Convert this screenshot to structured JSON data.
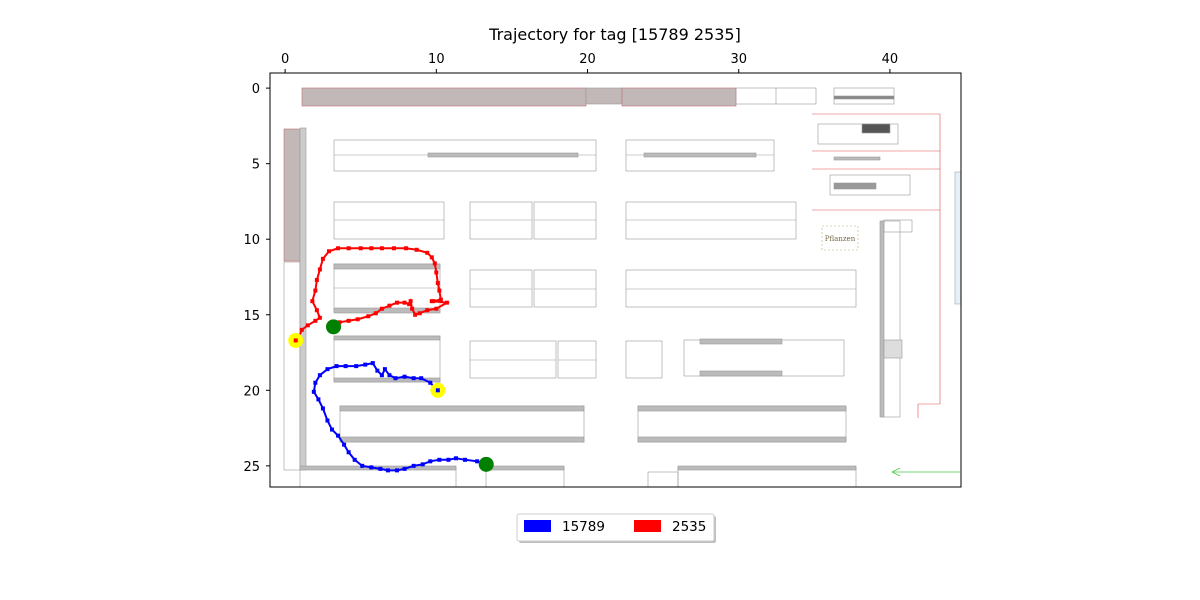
{
  "chart_data": {
    "type": "scatter",
    "title": "Trajectory for tag [15789  2535]",
    "xlabel": "",
    "ylabel": "",
    "xlim": [
      -1,
      44.7
    ],
    "ylim": [
      26.4,
      -1
    ],
    "x_ticks": [
      0,
      10,
      20,
      30,
      40
    ],
    "y_ticks": [
      0,
      5,
      10,
      15,
      20,
      25
    ],
    "x_axis_position": "top",
    "y_inverted": true,
    "grid": false,
    "legend_position": "bottom-center",
    "background": "floor plan image",
    "floor_plan_labels": {
      "plants": "Pflanzen"
    },
    "series": [
      {
        "name": "15789",
        "color": "#0000ff",
        "points": [
          [
            13.3,
            24.9
          ],
          [
            12.7,
            24.7
          ],
          [
            11.9,
            24.6
          ],
          [
            11.3,
            24.5
          ],
          [
            10.8,
            24.6
          ],
          [
            10.2,
            24.6
          ],
          [
            9.6,
            24.7
          ],
          [
            9.1,
            24.9
          ],
          [
            8.5,
            25.0
          ],
          [
            7.9,
            25.2
          ],
          [
            7.4,
            25.3
          ],
          [
            6.8,
            25.3
          ],
          [
            6.3,
            25.2
          ],
          [
            5.7,
            25.1
          ],
          [
            5.1,
            25.0
          ],
          [
            4.6,
            24.6
          ],
          [
            4.2,
            24.1
          ],
          [
            3.9,
            23.6
          ],
          [
            3.5,
            23.0
          ],
          [
            3.1,
            22.6
          ],
          [
            2.8,
            22.0
          ],
          [
            2.5,
            21.2
          ],
          [
            2.2,
            20.6
          ],
          [
            1.9,
            20.1
          ],
          [
            2.0,
            19.5
          ],
          [
            2.3,
            19.0
          ],
          [
            2.8,
            18.6
          ],
          [
            3.4,
            18.4
          ],
          [
            4.0,
            18.4
          ],
          [
            4.7,
            18.4
          ],
          [
            5.3,
            18.3
          ],
          [
            5.8,
            18.2
          ],
          [
            6.1,
            18.7
          ],
          [
            6.4,
            19.0
          ],
          [
            6.6,
            18.6
          ],
          [
            6.9,
            19.0
          ],
          [
            7.3,
            19.2
          ],
          [
            7.9,
            19.1
          ],
          [
            8.5,
            19.2
          ],
          [
            9.0,
            19.2
          ],
          [
            9.6,
            19.5
          ],
          [
            10.1,
            20.0
          ]
        ]
      },
      {
        "name": "2535",
        "color": "#ff0000",
        "points": [
          [
            3.1,
            15.8
          ],
          [
            3.0,
            15.6
          ],
          [
            3.6,
            15.5
          ],
          [
            4.2,
            15.4
          ],
          [
            4.8,
            15.3
          ],
          [
            5.5,
            15.1
          ],
          [
            6.0,
            14.9
          ],
          [
            6.4,
            14.6
          ],
          [
            6.9,
            14.4
          ],
          [
            7.4,
            14.2
          ],
          [
            7.9,
            14.2
          ],
          [
            8.2,
            14.3
          ],
          [
            8.3,
            14.1
          ],
          [
            8.4,
            14.6
          ],
          [
            8.6,
            15.0
          ],
          [
            8.9,
            14.9
          ],
          [
            9.4,
            14.7
          ],
          [
            10.0,
            14.6
          ],
          [
            10.7,
            14.2
          ],
          [
            9.7,
            14.1
          ],
          [
            9.8,
            14.1
          ],
          [
            10.3,
            14.0
          ],
          [
            10.2,
            13.4
          ],
          [
            10.1,
            12.9
          ],
          [
            10.0,
            12.2
          ],
          [
            9.9,
            11.6
          ],
          [
            9.7,
            11.2
          ],
          [
            9.4,
            10.9
          ],
          [
            8.7,
            10.7
          ],
          [
            8.0,
            10.6
          ],
          [
            7.2,
            10.6
          ],
          [
            6.4,
            10.6
          ],
          [
            5.7,
            10.6
          ],
          [
            5.0,
            10.6
          ],
          [
            4.2,
            10.6
          ],
          [
            3.5,
            10.6
          ],
          [
            2.9,
            10.8
          ],
          [
            2.5,
            11.3
          ],
          [
            2.3,
            12.0
          ],
          [
            2.1,
            12.7
          ],
          [
            2.0,
            13.4
          ],
          [
            1.8,
            14.1
          ],
          [
            2.1,
            14.7
          ],
          [
            2.3,
            15.2
          ],
          [
            2.0,
            15.4
          ],
          [
            1.5,
            15.7
          ],
          [
            1.1,
            16.0
          ],
          [
            0.9,
            16.5
          ],
          [
            0.8,
            16.8
          ]
        ]
      }
    ],
    "start_markers": {
      "color": "#008000",
      "points": [
        [
          13.3,
          24.9
        ],
        [
          3.2,
          15.8
        ]
      ]
    },
    "end_markers": {
      "color": "#ffff00",
      "points": [
        [
          10.1,
          20.0
        ],
        [
          0.7,
          16.7
        ]
      ]
    }
  },
  "legend": {
    "items": [
      {
        "label": "15789",
        "color": "#0000ff"
      },
      {
        "label": "2535",
        "color": "#ff0000"
      }
    ]
  }
}
